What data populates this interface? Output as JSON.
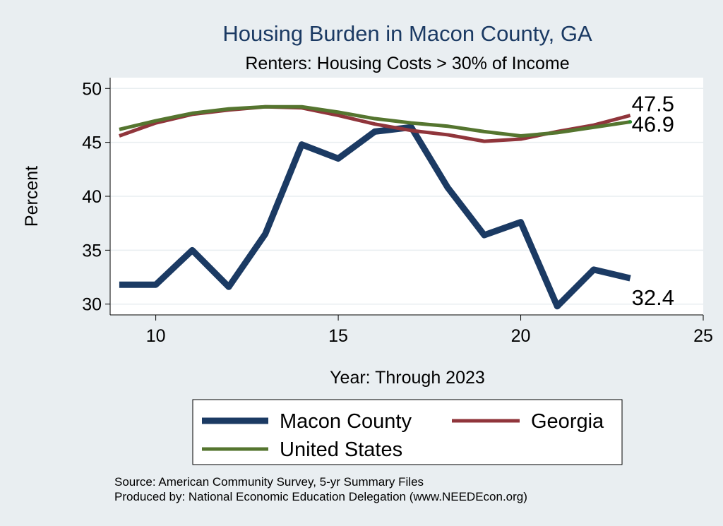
{
  "chart_data": {
    "type": "line",
    "title": "Housing Burden in Macon County, GA",
    "subtitle": "Renters: Housing Costs > 30% of Income",
    "xlabel": "Year: Through 2023",
    "ylabel": "Percent",
    "xlim": [
      8.75,
      25
    ],
    "ylim": [
      29,
      51
    ],
    "xticks": [
      10,
      15,
      20,
      25
    ],
    "yticks": [
      30,
      35,
      40,
      45,
      50
    ],
    "x": [
      9,
      10,
      11,
      12,
      13,
      14,
      15,
      16,
      17,
      18,
      19,
      20,
      21,
      22,
      23
    ],
    "series": [
      {
        "name": "Macon County",
        "color": "#1b3a63",
        "values": [
          31.8,
          31.8,
          35.0,
          31.6,
          36.5,
          44.8,
          43.5,
          46.0,
          46.4,
          40.8,
          36.4,
          37.6,
          29.8,
          33.2,
          32.4
        ],
        "end_label": "32.4"
      },
      {
        "name": "Georgia",
        "color": "#90353b",
        "values": [
          45.6,
          46.8,
          47.6,
          48.0,
          48.3,
          48.2,
          47.5,
          46.7,
          46.1,
          45.7,
          45.1,
          45.3,
          46.0,
          46.6,
          47.5
        ],
        "end_label": "47.5"
      },
      {
        "name": "United States",
        "color": "#55752f",
        "values": [
          46.2,
          47.0,
          47.7,
          48.1,
          48.3,
          48.3,
          47.8,
          47.2,
          46.8,
          46.5,
          46.0,
          45.6,
          45.9,
          46.4,
          46.9
        ],
        "end_label": "46.9"
      }
    ],
    "legend": [
      "Macon County",
      "Georgia",
      "United States"
    ],
    "legend_position": "bottom",
    "grid": true,
    "source_note": "Source: American Community Survey, 5-yr Summary Files",
    "produced_note": "Produced by: National Economic Education Delegation (www.NEEDEcon.org)"
  }
}
